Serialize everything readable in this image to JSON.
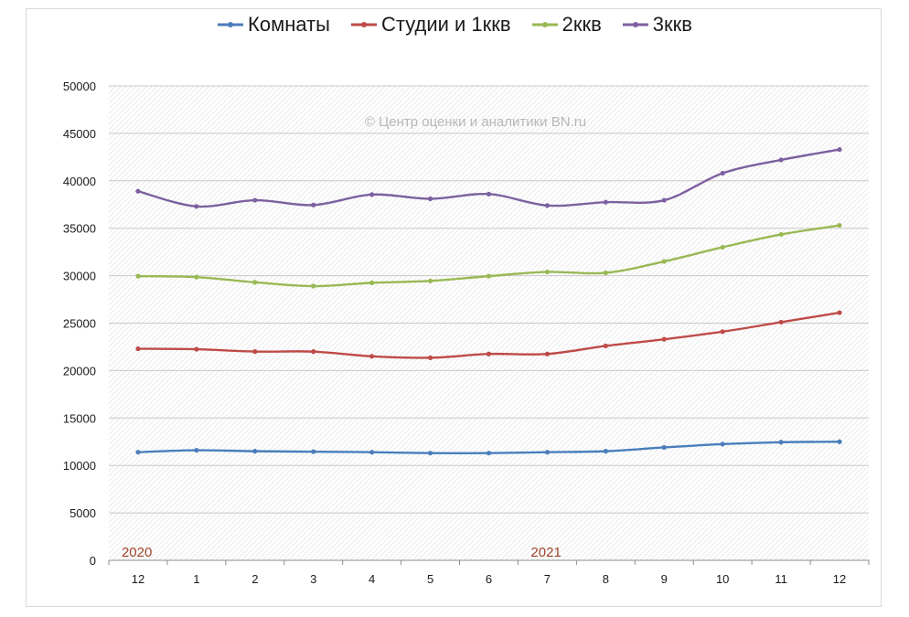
{
  "chart_data": {
    "type": "line",
    "title": "",
    "xlabel": "",
    "ylabel": "",
    "watermark": "© Центр оценки и аналитики BN.ru",
    "categories": [
      "12",
      "1",
      "2",
      "3",
      "4",
      "5",
      "6",
      "7",
      "8",
      "9",
      "10",
      "11",
      "12"
    ],
    "year_labels": [
      {
        "text": "2020",
        "category_index": 0
      },
      {
        "text": "2021",
        "category_index": 7
      }
    ],
    "ylim": [
      0,
      50000
    ],
    "yticks": [
      0,
      5000,
      10000,
      15000,
      20000,
      25000,
      30000,
      35000,
      40000,
      45000,
      50000
    ],
    "grid": true,
    "legend": "top-center",
    "series": [
      {
        "name": "Комнаты",
        "color": "#4a7ebb",
        "values": [
          11400,
          11600,
          11500,
          11450,
          11400,
          11300,
          11300,
          11400,
          11500,
          11900,
          12250,
          12450,
          12500
        ]
      },
      {
        "name": "Студии и 1ккв",
        "color": "#be4b48",
        "values": [
          22300,
          22250,
          22000,
          22000,
          21500,
          21350,
          21750,
          21750,
          22600,
          23300,
          24100,
          25100,
          26100
        ]
      },
      {
        "name": "2ккв",
        "color": "#98b954",
        "values": [
          29950,
          29850,
          29300,
          28900,
          29250,
          29450,
          29950,
          30400,
          30300,
          31500,
          33000,
          34350,
          35300
        ]
      },
      {
        "name": "3ккв",
        "color": "#7d60a0",
        "values": [
          38900,
          37300,
          37950,
          37450,
          38550,
          38100,
          38600,
          37400,
          37750,
          37950,
          40800,
          42200,
          43300
        ]
      }
    ]
  }
}
